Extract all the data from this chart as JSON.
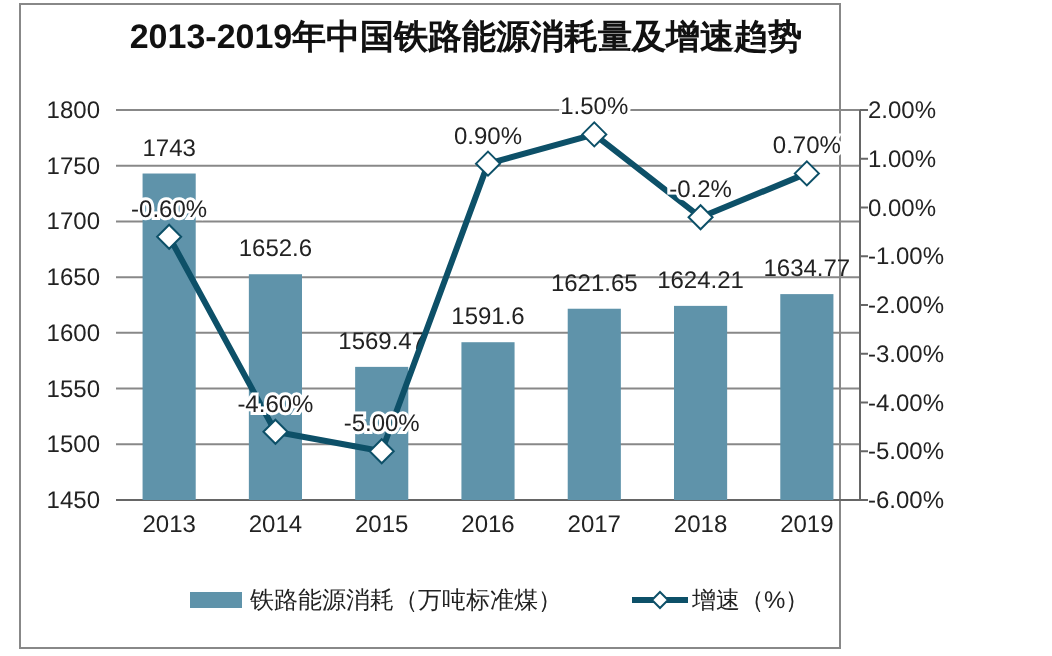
{
  "chart_data": {
    "type": "bar",
    "title": "2013-2019年中国铁路能源消耗量及增速趋势",
    "categories": [
      "2013",
      "2014",
      "2015",
      "2016",
      "2017",
      "2018",
      "2019"
    ],
    "series": [
      {
        "name": "铁路能源消耗（万吨标准煤）",
        "color": "#5f93aa",
        "values": [
          1743,
          1652.6,
          1569.47,
          1591.6,
          1621.65,
          1624.21,
          1634.77
        ],
        "value_labels": [
          "1743",
          "1652.6",
          "1569.47",
          "1591.6",
          "1621.65",
          "1624.21",
          "1634.77"
        ]
      },
      {
        "name": "增速（%）",
        "type": "line",
        "axis": "y2",
        "color": "#0d5068",
        "marker": "diamond",
        "values": [
          -0.6,
          -4.6,
          -5.0,
          0.9,
          1.5,
          -0.2,
          0.7
        ],
        "value_labels": [
          "-0.60%",
          "-4.60%",
          "-5.00%",
          "0.90%",
          "1.50%",
          "-0.2%",
          "0.70%"
        ]
      }
    ],
    "ylim": [
      1450,
      1800
    ],
    "yticks": [
      1450,
      1500,
      1550,
      1600,
      1650,
      1700,
      1750,
      1800
    ],
    "y2lim": [
      -6,
      2
    ],
    "y2ticks": [
      {
        "value": -6,
        "label": "-6.00%"
      },
      {
        "value": -5,
        "label": "-5.00%"
      },
      {
        "value": -4,
        "label": "-4.00%"
      },
      {
        "value": -3,
        "label": "-3.00%"
      },
      {
        "value": -2,
        "label": "-2.00%"
      },
      {
        "value": -1,
        "label": "-1.00%"
      },
      {
        "value": 0,
        "label": "0.00%"
      },
      {
        "value": 1,
        "label": "1.00%"
      },
      {
        "value": 2,
        "label": "2.00%"
      }
    ],
    "grid": "y",
    "legend": "bottom"
  }
}
